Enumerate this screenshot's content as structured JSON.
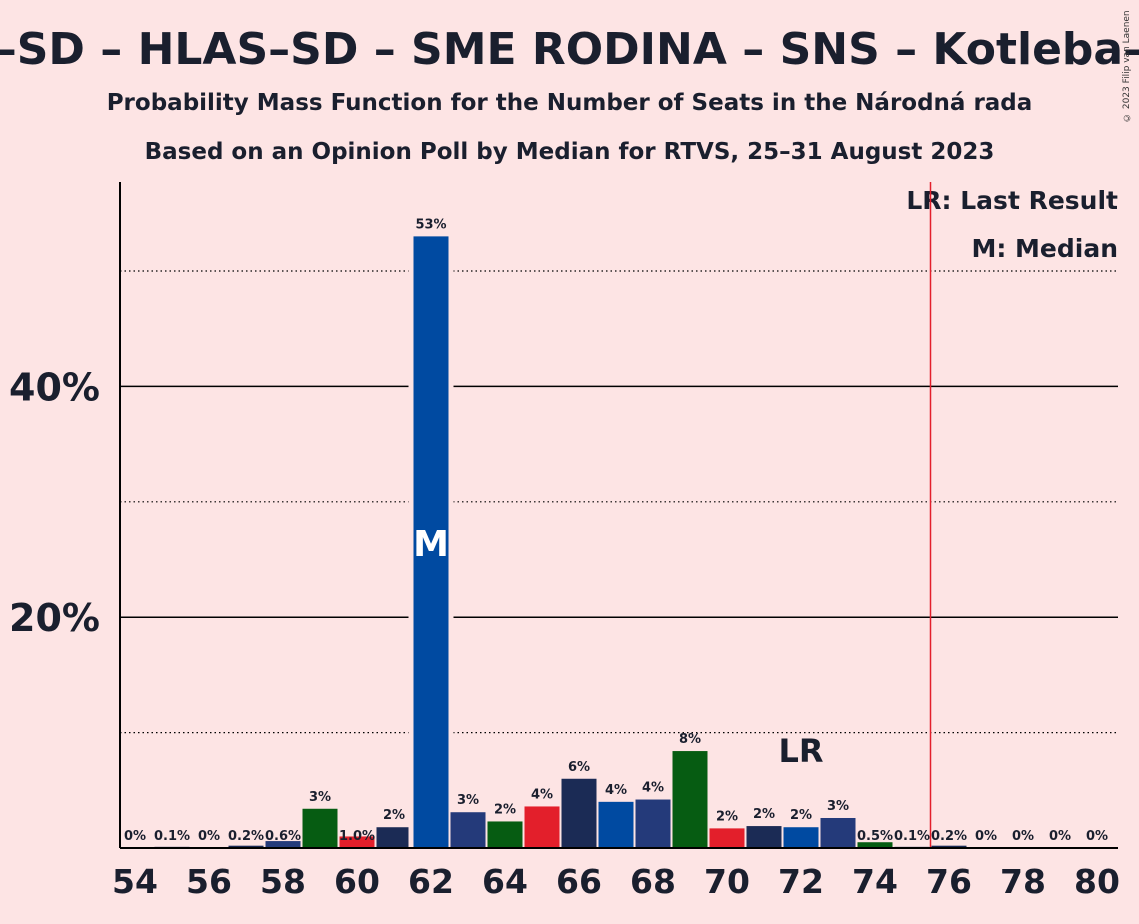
{
  "title": "Smer–SD – HLAS–SD – SME RODINA – SNS – Kotleba–ĽSNS",
  "subtitle1": "Probability Mass Function for the Number of Seats in the Národná rada",
  "subtitle2": "Based on an Opinion Poll by Median for RTVS, 25–31 August 2023",
  "copyright": "© 2023 Filip van Laenen",
  "legend": {
    "lr": "LR: Last Result",
    "m": "M: Median"
  },
  "chart_data": {
    "type": "bar",
    "x": [
      54,
      55,
      56,
      57,
      58,
      59,
      60,
      61,
      62,
      63,
      64,
      65,
      66,
      67,
      68,
      69,
      70,
      71,
      72,
      73,
      74,
      75,
      76,
      77,
      78,
      79,
      80
    ],
    "values": [
      0,
      0.1,
      0,
      0.2,
      0.6,
      3.4,
      1.0,
      1.8,
      53,
      3.1,
      2.3,
      3.6,
      6.0,
      4.0,
      4.2,
      8.4,
      1.7,
      1.9,
      1.8,
      2.6,
      0.5,
      0.1,
      0.2,
      0,
      0,
      0,
      0
    ],
    "data_labels": [
      "0%",
      "0.1%",
      "0%",
      "0.2%",
      "0.6%",
      "3%",
      "1.0%",
      "2%",
      "53%",
      "3%",
      "2%",
      "4%",
      "6%",
      "4%",
      "4%",
      "8%",
      "2%",
      "2%",
      "2%",
      "3%",
      "0.5%",
      "0.1%",
      "0.2%",
      "0%",
      "0%",
      "0%",
      "0%"
    ],
    "bar_colors": [
      "#1b2b55",
      "#1b2b55",
      "#1b2b55",
      "#1b2b55",
      "#243a7a",
      "#065c12",
      "#e31f2b",
      "#1b2b55",
      "#004aa1",
      "#243a7a",
      "#065c12",
      "#e31f2b",
      "#1b2b55",
      "#004aa1",
      "#243a7a",
      "#065c12",
      "#e31f2b",
      "#1b2b55",
      "#004aa1",
      "#243a7a",
      "#065c12",
      "#1b2b55",
      "#1b2b55",
      "#1b2b55",
      "#1b2b55",
      "#1b2b55",
      "#1b2b55"
    ],
    "x_tick_labels": [
      "54",
      "56",
      "58",
      "60",
      "62",
      "64",
      "66",
      "68",
      "70",
      "72",
      "74",
      "76",
      "78",
      "80"
    ],
    "y_ticks": [
      20,
      40
    ],
    "y_tick_labels": [
      "20%",
      "40%"
    ],
    "y_dotted_gridlines": [
      10,
      30,
      50
    ],
    "ylim": [
      0,
      57.5
    ],
    "median_seat": 62,
    "median_label": "M",
    "last_result_seat": 72,
    "last_result_label": "LR",
    "majority_line_at": 75.5,
    "majority_line_color": "#e31f2b"
  }
}
